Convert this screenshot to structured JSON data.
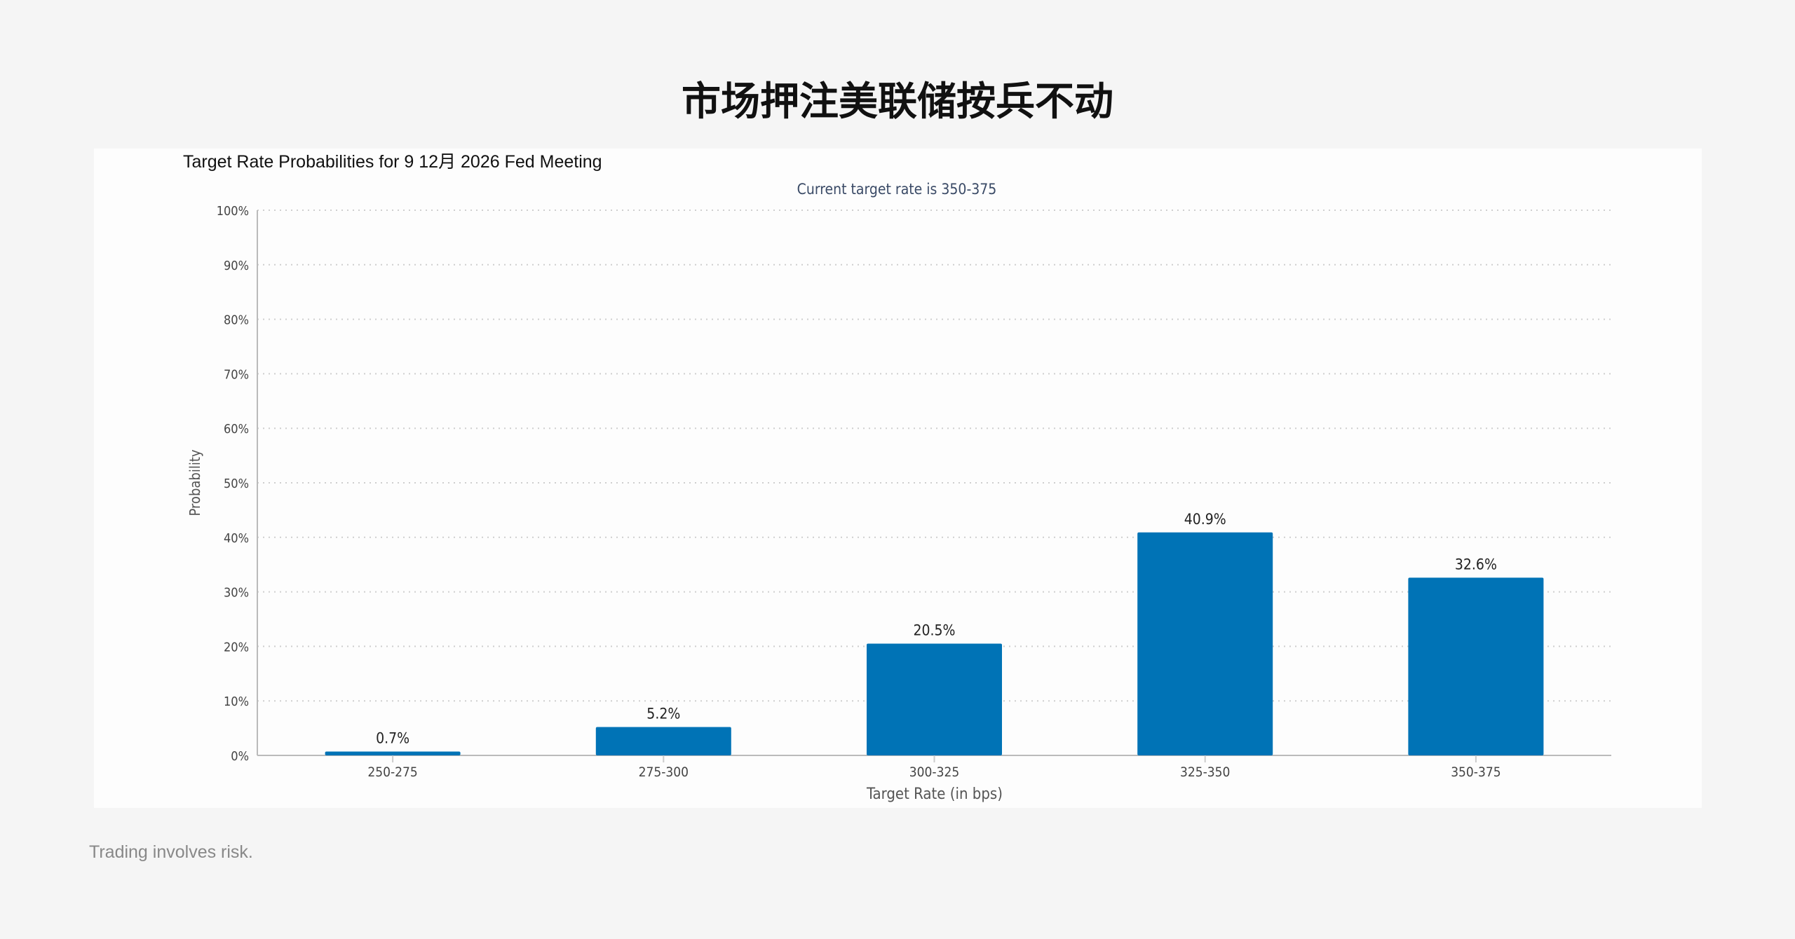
{
  "page": {
    "heading": "市场押注美联储按兵不动",
    "footer": "Trading involves risk."
  },
  "chart_data": {
    "type": "bar",
    "title": "Target Rate Probabilities for 9 12月 2026 Fed Meeting",
    "subtitle": "Current target rate is 350-375",
    "xlabel": "Target Rate (in bps)",
    "ylabel": "Probability",
    "categories": [
      "250-275",
      "275-300",
      "300-325",
      "325-350",
      "350-375"
    ],
    "values": [
      0.7,
      5.2,
      20.5,
      40.9,
      32.6
    ],
    "data_labels": [
      "0.7%",
      "5.2%",
      "20.5%",
      "40.9%",
      "32.6%"
    ],
    "ylim": [
      0,
      100
    ],
    "yticks": [
      "0%",
      "10%",
      "20%",
      "30%",
      "40%",
      "50%",
      "60%",
      "70%",
      "80%",
      "90%",
      "100%"
    ],
    "grid": true,
    "bar_color": "#0073b6"
  }
}
